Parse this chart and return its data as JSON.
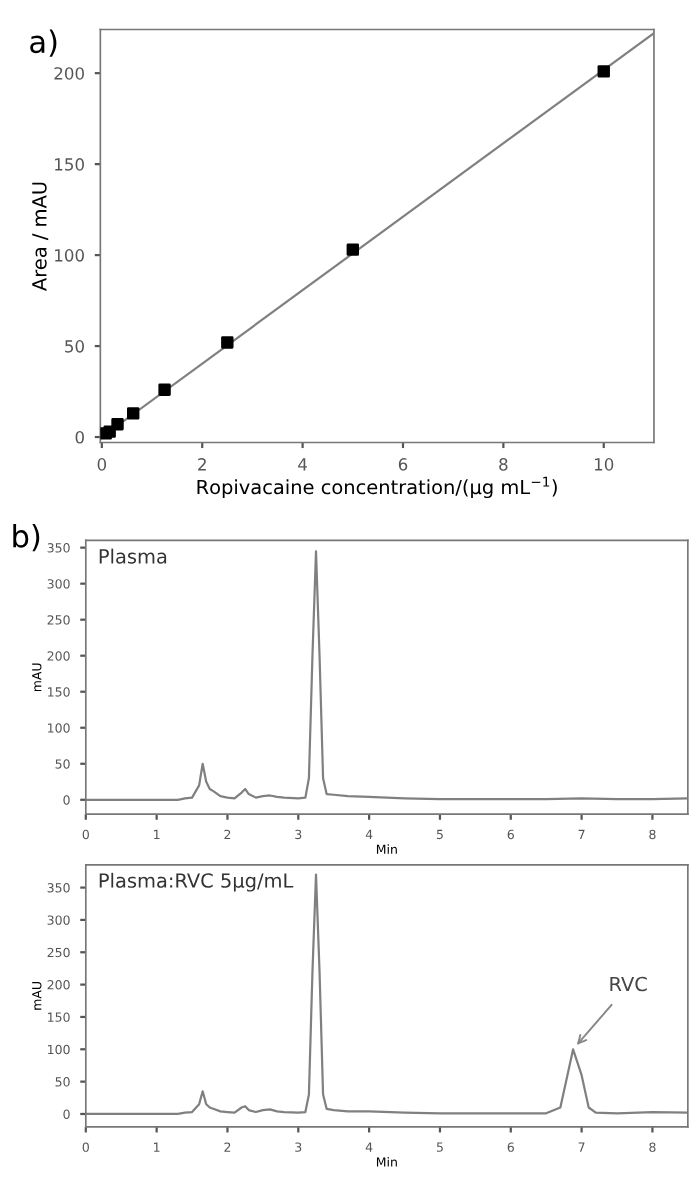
{
  "chart_data": [
    {
      "type": "scatter",
      "xlabel": "Ropivacaine concentration/(µg mL$^{−1}$)",
      "ylabel": "Area / mAU",
      "annotations": [
        "a)"
      ],
      "xlim": [
        -0.03,
        11
      ],
      "ylim": [
        -3,
        224
      ],
      "xticks": [
        0,
        2,
        4,
        6,
        8,
        10
      ],
      "yticks": [
        0,
        50,
        100,
        150,
        200
      ],
      "series": [
        {
          "type": "line",
          "color": "#808080",
          "x": [
            0,
            11
          ],
          "values": [
            0,
            222
          ],
          "marker": "none"
        },
        {
          "type": "scatter",
          "color": "#000000",
          "marker": "square",
          "x": [
            0.078,
            0.156,
            0.3125,
            0.625,
            1.25,
            2.5,
            5,
            10
          ],
          "values": [
            2,
            3,
            7,
            13,
            26,
            52,
            103,
            201
          ]
        }
      ]
    },
    {
      "type": "line",
      "xlabel": "Min",
      "ylabel": "mAU",
      "annotations": [
        "b)",
        "Plasma"
      ],
      "xlim": [
        0,
        8.5
      ],
      "ylim": [
        -20,
        360
      ],
      "xticks": [
        0,
        1,
        2,
        3,
        4,
        5,
        6,
        7,
        8
      ],
      "yticks": [
        0,
        50,
        100,
        150,
        200,
        250,
        300,
        350
      ],
      "series": [
        {
          "color": "#808080",
          "x": [
            0,
            1.3,
            1.4,
            1.5,
            1.6,
            1.65,
            1.7,
            1.75,
            1.8,
            1.9,
            2.0,
            2.1,
            2.2,
            2.25,
            2.3,
            2.4,
            2.5,
            2.6,
            2.7,
            2.8,
            3.0,
            3.1,
            3.15,
            3.2,
            3.25,
            3.3,
            3.35,
            3.4,
            3.5,
            3.7,
            4.0,
            4.5,
            5,
            5.5,
            6,
            6.5,
            7,
            7.5,
            8,
            8.5
          ],
          "values": [
            0,
            0,
            2,
            3,
            20,
            50,
            25,
            15,
            12,
            5,
            3,
            2,
            10,
            15,
            8,
            3,
            5,
            6,
            4,
            3,
            2,
            3,
            30,
            200,
            345,
            200,
            30,
            8,
            7,
            5,
            4,
            2,
            1,
            1,
            1,
            1,
            2,
            1,
            1,
            2
          ]
        }
      ]
    },
    {
      "type": "line",
      "xlabel": "Min",
      "ylabel": "mAU",
      "annotations": [
        "Plasma:RVC 5µg/mL",
        {
          "text": "RVC",
          "x": 6.88,
          "y": 100
        }
      ],
      "xlim": [
        0,
        8.5
      ],
      "ylim": [
        -20,
        385
      ],
      "xticks": [
        0,
        1,
        2,
        3,
        4,
        5,
        6,
        7,
        8
      ],
      "yticks": [
        0,
        50,
        100,
        150,
        200,
        250,
        300,
        350
      ],
      "series": [
        {
          "color": "#808080",
          "x": [
            0,
            1.3,
            1.4,
            1.5,
            1.6,
            1.65,
            1.7,
            1.75,
            1.8,
            1.9,
            2.0,
            2.1,
            2.2,
            2.25,
            2.3,
            2.4,
            2.5,
            2.6,
            2.7,
            2.8,
            3.0,
            3.1,
            3.15,
            3.2,
            3.25,
            3.3,
            3.35,
            3.4,
            3.5,
            3.7,
            4.0,
            4.5,
            5,
            5.5,
            6,
            6.5,
            6.7,
            6.8,
            6.88,
            7.0,
            7.1,
            7.2,
            7.5,
            8,
            8.5
          ],
          "values": [
            0,
            0,
            2,
            3,
            15,
            35,
            15,
            10,
            8,
            4,
            3,
            2,
            10,
            12,
            6,
            3,
            6,
            7,
            4,
            3,
            2,
            3,
            30,
            220,
            370,
            220,
            30,
            8,
            6,
            4,
            4,
            2,
            1,
            1,
            1,
            1,
            10,
            60,
            100,
            60,
            10,
            2,
            1,
            3,
            2
          ]
        }
      ]
    }
  ]
}
